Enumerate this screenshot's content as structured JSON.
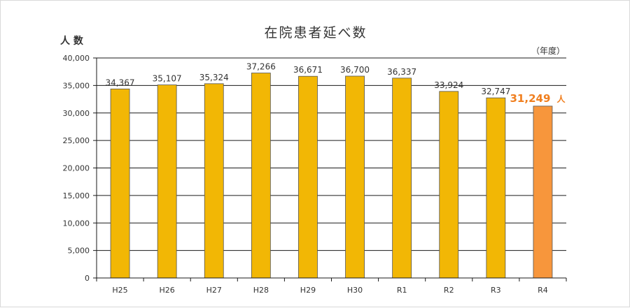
{
  "chart_data": {
    "type": "bar",
    "title": "在院患者延べ数",
    "ylabel": "人 数",
    "xunit": "（年度）",
    "categories": [
      "H25",
      "H26",
      "H27",
      "H28",
      "H29",
      "H30",
      "R1",
      "R2",
      "R3",
      "R4"
    ],
    "values": [
      34367,
      35107,
      35324,
      37266,
      36671,
      36700,
      36337,
      33924,
      32747,
      31249
    ],
    "value_labels": [
      "34,367",
      "35,107",
      "35,324",
      "37,266",
      "36,671",
      "36,700",
      "36,337",
      "33,924",
      "32,747",
      "31,249"
    ],
    "highlight_label_suffix": "人",
    "ylim": [
      0,
      40000
    ],
    "yticks": [
      0,
      5000,
      10000,
      15000,
      20000,
      25000,
      30000,
      35000,
      40000
    ],
    "ytick_labels": [
      "0",
      "5,000",
      "10,000",
      "15,000",
      "20,000",
      "25,000",
      "30,000",
      "35,000",
      "40,000"
    ],
    "grid": true,
    "highlight_index": 9,
    "colors": {
      "bar": "#f2b705",
      "bar_highlight": "#f7963c",
      "highlight_text": "#f07f1f",
      "grid": "#1a1a1a",
      "text": "#333333"
    }
  }
}
